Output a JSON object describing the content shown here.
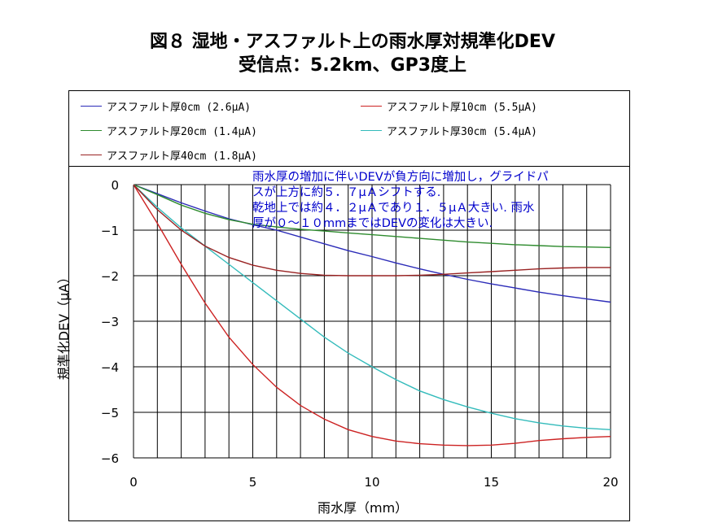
{
  "title_line1": "図８ 湿地・アスファルト上の雨水厚対規準化DEV",
  "title_line2": "受信点：5.2km、GP3度上",
  "chart_data": {
    "type": "line",
    "xlabel": "雨水厚（mm）",
    "ylabel": "規準化DEV（μA）",
    "xlim": [
      0,
      20
    ],
    "ylim": [
      -6,
      0
    ],
    "xticks": [
      "0",
      "5",
      "10",
      "15",
      "20"
    ],
    "yticks": [
      "0",
      "−1",
      "−2",
      "−3",
      "−4",
      "−5",
      "−6"
    ],
    "grid": true,
    "legend_position": "top",
    "series": [
      {
        "name": "アスファルト厚0cm (2.6μA)",
        "color": "#2b2bb8",
        "x": [
          0,
          1,
          2,
          3,
          4,
          5,
          6,
          7,
          8,
          9,
          10,
          11,
          12,
          13,
          14,
          15,
          16,
          17,
          18,
          19,
          20
        ],
        "y": [
          0,
          -0.2,
          -0.4,
          -0.58,
          -0.75,
          -0.88,
          -1.0,
          -1.15,
          -1.3,
          -1.45,
          -1.58,
          -1.72,
          -1.85,
          -1.97,
          -2.08,
          -2.18,
          -2.27,
          -2.36,
          -2.44,
          -2.51,
          -2.58
        ]
      },
      {
        "name": "アスファルト厚10cm (5.5μA)",
        "color": "#cc2222",
        "x": [
          0,
          1,
          2,
          3,
          4,
          5,
          6,
          7,
          8,
          9,
          10,
          11,
          12,
          13,
          14,
          15,
          16,
          17,
          18,
          19,
          20
        ],
        "y": [
          0,
          -0.85,
          -1.75,
          -2.6,
          -3.35,
          -3.95,
          -4.45,
          -4.85,
          -5.15,
          -5.38,
          -5.53,
          -5.63,
          -5.69,
          -5.72,
          -5.73,
          -5.72,
          -5.68,
          -5.62,
          -5.58,
          -5.55,
          -5.53
        ]
      },
      {
        "name": "アスファルト厚20cm (1.4μA)",
        "color": "#2e8b2e",
        "x": [
          0,
          1,
          2,
          3,
          4,
          5,
          6,
          7,
          8,
          9,
          10,
          11,
          12,
          13,
          14,
          15,
          16,
          17,
          18,
          19,
          20
        ],
        "y": [
          0,
          -0.22,
          -0.45,
          -0.63,
          -0.77,
          -0.87,
          -0.93,
          -0.98,
          -1.02,
          -1.06,
          -1.1,
          -1.14,
          -1.18,
          -1.22,
          -1.26,
          -1.29,
          -1.32,
          -1.34,
          -1.36,
          -1.37,
          -1.38
        ]
      },
      {
        "name": "アスファルト厚30cm (5.4μA)",
        "color": "#33bbbb",
        "x": [
          0,
          1,
          2,
          3,
          4,
          5,
          6,
          7,
          8,
          9,
          10,
          11,
          12,
          13,
          14,
          15,
          16,
          17,
          18,
          19,
          20
        ],
        "y": [
          0,
          -0.5,
          -0.95,
          -1.35,
          -1.75,
          -2.15,
          -2.55,
          -2.95,
          -3.35,
          -3.7,
          -4.0,
          -4.28,
          -4.53,
          -4.72,
          -4.88,
          -5.02,
          -5.14,
          -5.23,
          -5.3,
          -5.35,
          -5.38
        ]
      },
      {
        "name": "アスファルト厚40cm (1.8μA)",
        "color": "#992222",
        "x": [
          0,
          1,
          2,
          3,
          4,
          5,
          6,
          7,
          8,
          9,
          10,
          11,
          12,
          13,
          14,
          15,
          16,
          17,
          18,
          19,
          20
        ],
        "y": [
          0,
          -0.55,
          -1.0,
          -1.35,
          -1.6,
          -1.77,
          -1.88,
          -1.95,
          -1.99,
          -2.0,
          -2.0,
          -2.0,
          -1.99,
          -1.97,
          -1.94,
          -1.91,
          -1.88,
          -1.85,
          -1.83,
          -1.82,
          -1.82
        ]
      }
    ],
    "annotation_lines": [
      "雨水厚の増加に伴いDEVが負方向に増加し，グライドパ",
      "スが上方に約５．７μＡシフトする.",
      "乾地上では約４．２μＡであり１．５μＡ大きい. 雨水",
      "厚が０～１０mmまではDEVの変化は大きい."
    ]
  }
}
